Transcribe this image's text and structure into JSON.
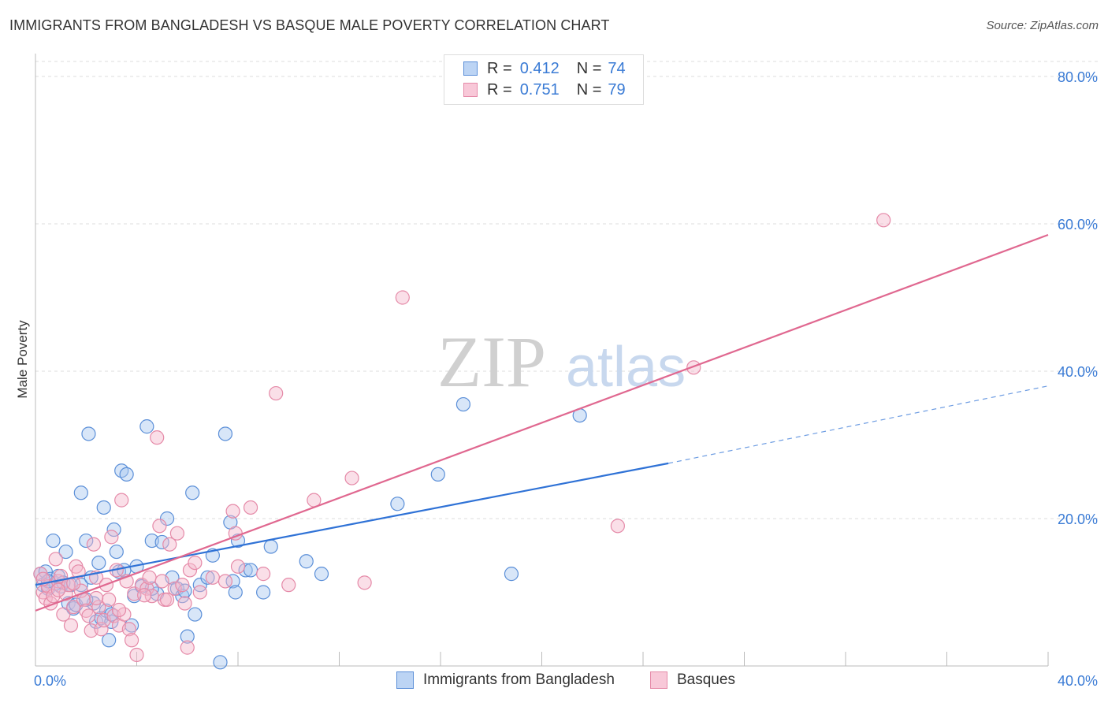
{
  "title": "IMMIGRANTS FROM BANGLADESH VS BASQUE MALE POVERTY CORRELATION CHART",
  "source": "Source: ZipAtlas.com",
  "watermark": {
    "zip": "ZIP",
    "atlas": "atlas"
  },
  "legend": {
    "rows": [
      {
        "r_label": "R =",
        "r_value": "0.412",
        "n_label": "N =",
        "n_value": "74"
      },
      {
        "r_label": "R =",
        "r_value": "0.751",
        "n_label": "N =",
        "n_value": "79"
      }
    ]
  },
  "bottom_legend": {
    "series1": "Immigrants from Bangladesh",
    "series2": "Basques"
  },
  "colors": {
    "blue_fill": "#a9c8f0",
    "blue_stroke": "#5b8fd8",
    "blue_line": "#2f72d6",
    "pink_fill": "#f5b8cc",
    "pink_stroke": "#e58aa8",
    "pink_line": "#e06890",
    "tick_label": "#3a7bd5",
    "grid": "#dddddd"
  },
  "chart_data": {
    "type": "scatter",
    "title": "IMMIGRANTS FROM BANGLADESH VS BASQUE MALE POVERTY CORRELATION CHART",
    "xlabel": "",
    "ylabel": "Male Poverty",
    "xlim": [
      0,
      40
    ],
    "ylim": [
      0,
      80
    ],
    "x_tick_labels": [
      {
        "value": 0,
        "label": "0.0%"
      },
      {
        "value": 40,
        "label": "40.0%"
      }
    ],
    "y_tick_labels": [
      {
        "value": 20,
        "label": "20.0%"
      },
      {
        "value": 40,
        "label": "40.0%"
      },
      {
        "value": 60,
        "label": "60.0%"
      },
      {
        "value": 80,
        "label": "80.0%"
      }
    ],
    "series": [
      {
        "name": "Immigrants from Bangladesh",
        "R": 0.412,
        "N": 74,
        "trend": {
          "x0": 0,
          "y0": 11.0,
          "x1": 25.0,
          "y1": 27.5,
          "dashed_to_x": 40,
          "dashed_to_y": 38.0
        },
        "points": [
          [
            0.2,
            12.5
          ],
          [
            0.3,
            11.0
          ],
          [
            0.4,
            12.8
          ],
          [
            0.5,
            10.5
          ],
          [
            0.6,
            11.8
          ],
          [
            0.7,
            17.0
          ],
          [
            0.8,
            11.2
          ],
          [
            0.9,
            12.2
          ],
          [
            1.0,
            10.8
          ],
          [
            1.2,
            15.5
          ],
          [
            1.3,
            8.5
          ],
          [
            1.4,
            11.0
          ],
          [
            1.5,
            7.8
          ],
          [
            1.6,
            8.3
          ],
          [
            1.8,
            23.5
          ],
          [
            1.8,
            11.0
          ],
          [
            2.0,
            17.0
          ],
          [
            2.1,
            31.5
          ],
          [
            2.2,
            12.0
          ],
          [
            2.3,
            8.5
          ],
          [
            2.4,
            6.0
          ],
          [
            2.5,
            14.0
          ],
          [
            2.6,
            6.5
          ],
          [
            2.7,
            21.5
          ],
          [
            2.8,
            7.5
          ],
          [
            2.9,
            3.5
          ],
          [
            3.0,
            6.0
          ],
          [
            3.1,
            18.5
          ],
          [
            3.2,
            15.5
          ],
          [
            3.3,
            12.8
          ],
          [
            3.4,
            26.5
          ],
          [
            3.5,
            13.0
          ],
          [
            3.6,
            26.0
          ],
          [
            3.8,
            5.5
          ],
          [
            3.9,
            9.5
          ],
          [
            4.0,
            13.5
          ],
          [
            4.2,
            10.8
          ],
          [
            4.4,
            32.5
          ],
          [
            4.6,
            17.0
          ],
          [
            4.8,
            9.8
          ],
          [
            5.0,
            16.8
          ],
          [
            5.2,
            20.0
          ],
          [
            5.4,
            12.0
          ],
          [
            5.6,
            10.5
          ],
          [
            5.8,
            9.5
          ],
          [
            6.0,
            4.0
          ],
          [
            6.2,
            23.5
          ],
          [
            6.3,
            7.0
          ],
          [
            6.5,
            11.0
          ],
          [
            6.8,
            12.0
          ],
          [
            7.0,
            15.0
          ],
          [
            7.3,
            0.5
          ],
          [
            7.5,
            31.5
          ],
          [
            7.7,
            19.5
          ],
          [
            7.8,
            11.5
          ],
          [
            7.9,
            10.0
          ],
          [
            8.0,
            17.0
          ],
          [
            8.3,
            13.0
          ],
          [
            8.5,
            13.0
          ],
          [
            9.0,
            10.0
          ],
          [
            9.3,
            16.2
          ],
          [
            10.7,
            14.2
          ],
          [
            11.3,
            12.5
          ],
          [
            14.3,
            22.0
          ],
          [
            15.9,
            26.0
          ],
          [
            16.9,
            35.5
          ],
          [
            18.8,
            12.5
          ],
          [
            21.5,
            34.0
          ],
          [
            0.5,
            11.5
          ],
          [
            1.1,
            11.3
          ],
          [
            2.0,
            9.0
          ],
          [
            3.0,
            7.0
          ],
          [
            4.6,
            10.5
          ],
          [
            5.9,
            10.2
          ]
        ]
      },
      {
        "name": "Basques",
        "R": 0.751,
        "N": 79,
        "trend": {
          "x0": 0,
          "y0": 7.5,
          "x1": 40,
          "y1": 58.5
        },
        "points": [
          [
            0.2,
            12.5
          ],
          [
            0.3,
            10.0
          ],
          [
            0.4,
            9.2
          ],
          [
            0.5,
            10.8
          ],
          [
            0.6,
            8.5
          ],
          [
            0.7,
            9.5
          ],
          [
            0.8,
            14.5
          ],
          [
            0.9,
            11.5
          ],
          [
            1.0,
            12.2
          ],
          [
            1.1,
            7.0
          ],
          [
            1.2,
            9.8
          ],
          [
            1.3,
            11.0
          ],
          [
            1.4,
            5.5
          ],
          [
            1.5,
            8.0
          ],
          [
            1.6,
            13.5
          ],
          [
            1.7,
            12.8
          ],
          [
            1.8,
            10.2
          ],
          [
            1.9,
            9.0
          ],
          [
            2.0,
            7.5
          ],
          [
            2.1,
            6.8
          ],
          [
            2.2,
            4.8
          ],
          [
            2.3,
            16.5
          ],
          [
            2.4,
            12.0
          ],
          [
            2.5,
            8.0
          ],
          [
            2.6,
            5.0
          ],
          [
            2.7,
            6.2
          ],
          [
            2.8,
            11.0
          ],
          [
            2.9,
            9.0
          ],
          [
            3.0,
            17.5
          ],
          [
            3.1,
            6.8
          ],
          [
            3.2,
            13.0
          ],
          [
            3.3,
            5.5
          ],
          [
            3.4,
            22.5
          ],
          [
            3.5,
            7.0
          ],
          [
            3.6,
            11.5
          ],
          [
            3.7,
            5.0
          ],
          [
            3.8,
            3.5
          ],
          [
            3.9,
            9.8
          ],
          [
            4.0,
            1.5
          ],
          [
            4.2,
            11.0
          ],
          [
            4.4,
            10.5
          ],
          [
            4.5,
            12.0
          ],
          [
            4.6,
            9.5
          ],
          [
            4.8,
            31.0
          ],
          [
            4.9,
            19.0
          ],
          [
            5.0,
            11.5
          ],
          [
            5.1,
            9.0
          ],
          [
            5.3,
            16.5
          ],
          [
            5.5,
            10.5
          ],
          [
            5.6,
            18.0
          ],
          [
            5.8,
            11.0
          ],
          [
            5.9,
            8.5
          ],
          [
            6.0,
            2.5
          ],
          [
            6.1,
            13.0
          ],
          [
            6.3,
            14.0
          ],
          [
            6.5,
            10.0
          ],
          [
            7.0,
            12.0
          ],
          [
            7.5,
            11.5
          ],
          [
            7.8,
            21.0
          ],
          [
            7.9,
            18.0
          ],
          [
            8.0,
            13.5
          ],
          [
            8.5,
            21.5
          ],
          [
            9.0,
            12.5
          ],
          [
            9.5,
            37.0
          ],
          [
            10.0,
            11.0
          ],
          [
            11.0,
            22.5
          ],
          [
            12.5,
            25.5
          ],
          [
            13.0,
            11.3
          ],
          [
            14.5,
            50.0
          ],
          [
            23.0,
            19.0
          ],
          [
            26.0,
            40.5
          ],
          [
            33.5,
            60.5
          ],
          [
            0.3,
            11.8
          ],
          [
            0.9,
            10.3
          ],
          [
            1.5,
            11.2
          ],
          [
            2.4,
            9.2
          ],
          [
            3.3,
            7.6
          ],
          [
            4.3,
            9.6
          ],
          [
            5.2,
            9.0
          ]
        ]
      }
    ]
  }
}
